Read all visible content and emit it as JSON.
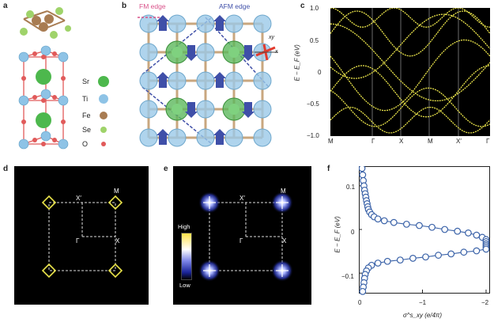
{
  "panel_a": {
    "label": "a",
    "legend": [
      {
        "name": "Sr",
        "color": "#4db84d"
      },
      {
        "name": "Ti",
        "color": "#8ec3e6"
      },
      {
        "name": "Fe",
        "color": "#a87c52"
      },
      {
        "name": "Se",
        "color": "#9fd36a"
      },
      {
        "name": "O",
        "color": "#e15a5a"
      }
    ]
  },
  "panel_b": {
    "label": "b",
    "fm_edge": "FM edge",
    "afm_edge": "AFM edge",
    "axis_xy": "xy",
    "axis_x": "x"
  },
  "panel_c": {
    "label": "c",
    "ylabel": "E − E_F (eV)",
    "yticks": [
      "1.0",
      "0.5",
      "0",
      "−0.5",
      "−1.0"
    ],
    "xticks": [
      "M",
      "Γ",
      "X",
      "M",
      "X′",
      "Γ"
    ]
  },
  "panel_d": {
    "label": "d",
    "labels": {
      "M": "M",
      "Xp": "X′",
      "G": "Γ",
      "X": "X"
    }
  },
  "panel_e": {
    "label": "e",
    "labels": {
      "M": "M",
      "Xp": "X′",
      "G": "Γ",
      "X": "X"
    },
    "colorbar_high": "High",
    "colorbar_low": "Low"
  },
  "panel_f": {
    "label": "f",
    "ylabel": "E − E_F (eV)",
    "xlabel": "σ^s_xy (e/4π)",
    "yticks": [
      "0.1",
      "0",
      "−0.1"
    ],
    "xticks": [
      "0",
      "−1",
      "−2"
    ]
  },
  "chart_data": [
    {
      "type": "scatter",
      "title": "",
      "xlabel": "σ^s_xy (e/4π)",
      "ylabel": "E − E_F (eV)",
      "xlim": [
        0,
        -2.05
      ],
      "ylim": [
        -0.145,
        0.145
      ],
      "series": [
        {
          "values": [
            [
              -0.05,
              0.14
            ],
            [
              -0.06,
              0.125
            ],
            [
              -0.07,
              0.112
            ],
            [
              -0.08,
              0.1
            ],
            [
              -0.09,
              0.09
            ],
            [
              -0.1,
              0.082
            ],
            [
              -0.11,
              0.074
            ],
            [
              -0.12,
              0.066
            ],
            [
              -0.13,
              0.059
            ],
            [
              -0.14,
              0.052
            ],
            [
              -0.15,
              0.046
            ],
            [
              -0.17,
              0.04
            ],
            [
              -0.2,
              0.034
            ],
            [
              -0.24,
              0.029
            ],
            [
              -0.3,
              0.024
            ],
            [
              -0.4,
              0.02
            ],
            [
              -0.55,
              0.016
            ],
            [
              -0.75,
              0.012
            ],
            [
              -0.95,
              0.009
            ],
            [
              -1.15,
              0.005
            ],
            [
              -1.35,
              0.0
            ],
            [
              -1.55,
              -0.004
            ],
            [
              -1.72,
              -0.008
            ],
            [
              -1.85,
              -0.013
            ],
            [
              -1.94,
              -0.018
            ],
            [
              -2.0,
              -0.023
            ],
            [
              -2.0,
              -0.028
            ],
            [
              -2.0,
              -0.033
            ],
            [
              -2.0,
              -0.037
            ],
            [
              -2.0,
              -0.041
            ]
          ]
        },
        {
          "values": [
            [
              -2.0,
              -0.045
            ],
            [
              -1.85,
              -0.049
            ],
            [
              -1.65,
              -0.052
            ],
            [
              -1.45,
              -0.056
            ],
            [
              -1.25,
              -0.059
            ],
            [
              -1.05,
              -0.063
            ],
            [
              -0.85,
              -0.066
            ],
            [
              -0.65,
              -0.07
            ],
            [
              -0.45,
              -0.073
            ],
            [
              -0.3,
              -0.077
            ],
            [
              -0.2,
              -0.082
            ],
            [
              -0.15,
              -0.088
            ],
            [
              -0.12,
              -0.095
            ],
            [
              -0.1,
              -0.103
            ],
            [
              -0.09,
              -0.112
            ],
            [
              -0.08,
              -0.122
            ],
            [
              -0.07,
              -0.132
            ],
            [
              -0.06,
              -0.142
            ]
          ]
        }
      ]
    }
  ]
}
